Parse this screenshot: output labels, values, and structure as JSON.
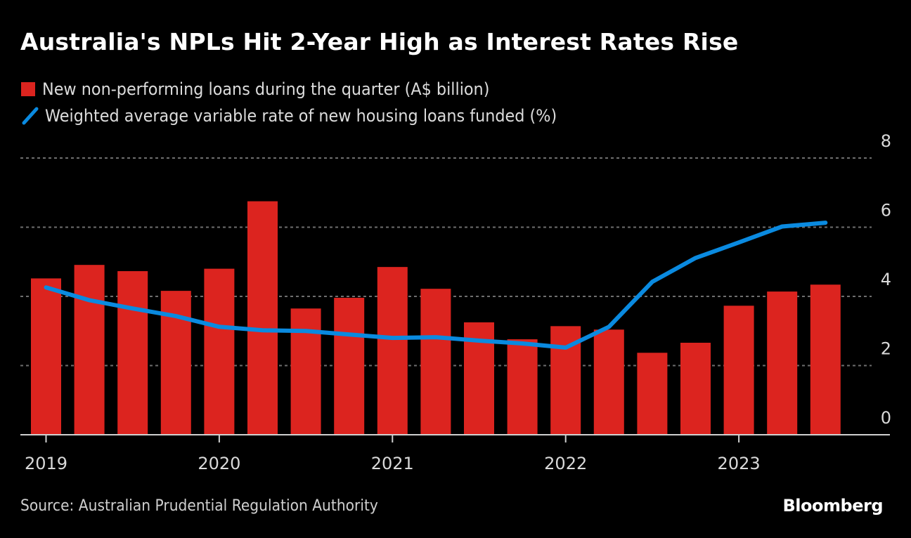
{
  "title": "Australia's NPLs Hit 2-Year High as Interest Rates Rise",
  "legend": [
    {
      "label": "New non-performing loans during the quarter (A$ billion)",
      "color": "#dc241f",
      "icon": "square-swatch-icon"
    },
    {
      "label": "Weighted average variable rate of new housing loans funded (%)",
      "color": "#0a8ae0",
      "icon": "line-swatch-icon"
    }
  ],
  "footer": {
    "source": "Source: Australian Prudential Regulation Authority",
    "brand": "Bloomberg"
  },
  "chart_data": {
    "type": "bar",
    "title": "Australia's NPLs Hit 2-Year High as Interest Rates Rise",
    "xlabel": "",
    "ylabel": "",
    "ylim": [
      0,
      8
    ],
    "yticks": [
      0,
      2,
      4,
      6,
      8
    ],
    "y_axis_position": "right",
    "grid": true,
    "legend_position": "top-left",
    "categories": [
      "2019 Q1",
      "2019 Q2",
      "2019 Q3",
      "2019 Q4",
      "2020 Q1",
      "2020 Q2",
      "2020 Q3",
      "2020 Q4",
      "2021 Q1",
      "2021 Q2",
      "2021 Q3",
      "2021 Q4",
      "2022 Q1",
      "2022 Q2",
      "2022 Q3",
      "2022 Q4",
      "2023 Q1",
      "2023 Q2",
      "2023 Q3"
    ],
    "xtick_labels": [
      {
        "label": "2019",
        "index": 0
      },
      {
        "label": "2020",
        "index": 4
      },
      {
        "label": "2021",
        "index": 8
      },
      {
        "label": "2022",
        "index": 12
      },
      {
        "label": "2023",
        "index": 16
      }
    ],
    "series": [
      {
        "name": "New non-performing loans during the quarter (A$ billion)",
        "type": "bar",
        "color": "#dc241f",
        "values": [
          4.52,
          4.91,
          4.73,
          4.16,
          4.8,
          6.75,
          3.65,
          3.96,
          4.85,
          4.22,
          3.25,
          2.76,
          3.14,
          3.04,
          2.37,
          2.66,
          3.73,
          4.14,
          4.34
        ]
      },
      {
        "name": "Weighted average variable rate of new housing loans funded (%)",
        "type": "line",
        "color": "#0a8ae0",
        "values": [
          4.26,
          3.89,
          3.65,
          3.43,
          3.12,
          3.02,
          3.0,
          2.9,
          2.8,
          2.82,
          2.72,
          2.64,
          2.52,
          3.12,
          4.42,
          5.11,
          5.56,
          6.02,
          6.13
        ]
      }
    ]
  }
}
